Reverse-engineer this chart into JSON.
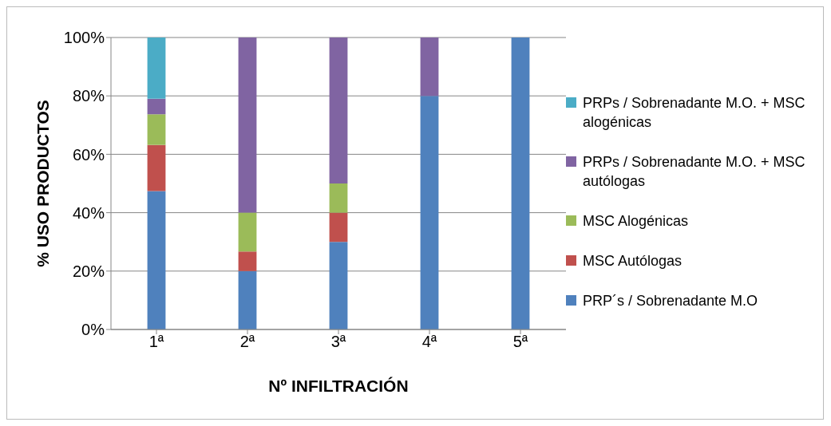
{
  "chart_data": {
    "type": "bar",
    "stacked": true,
    "xlabel": "Nº INFILTRACIÓN",
    "ylabel": "% USO PRODUCTOS",
    "categories": [
      "1ª",
      "2ª",
      "3ª",
      "4ª",
      "5ª"
    ],
    "series": [
      {
        "name": "PRP´s / Sobrenadante M.O",
        "color": "#4f81bd",
        "values": [
          47.4,
          20,
          30,
          80,
          100
        ]
      },
      {
        "name": "MSC Autólogas",
        "color": "#c0504d",
        "values": [
          15.8,
          6.7,
          10,
          0,
          0
        ]
      },
      {
        "name": "MSC Alogénicas",
        "color": "#9bbb59",
        "values": [
          10.5,
          13.3,
          10,
          0,
          0
        ]
      },
      {
        "name": "PRPs / Sobrenadante M.O. + MSC autólogas",
        "color": "#8064a2",
        "values": [
          5.3,
          60,
          50,
          20,
          0
        ]
      },
      {
        "name": "PRPs / Sobrenadante M.O. + MSC alogénicas",
        "color": "#4bacc6",
        "values": [
          21.1,
          0,
          0,
          0,
          0
        ]
      }
    ],
    "ylim": [
      0,
      100
    ],
    "yticks": [
      {
        "value": 0,
        "label": "0%"
      },
      {
        "value": 20,
        "label": "20%"
      },
      {
        "value": 40,
        "label": "40%"
      },
      {
        "value": 60,
        "label": "60%"
      },
      {
        "value": 80,
        "label": "80%"
      },
      {
        "value": 100,
        "label": "100%"
      }
    ],
    "grid": "y",
    "legend": "right"
  }
}
